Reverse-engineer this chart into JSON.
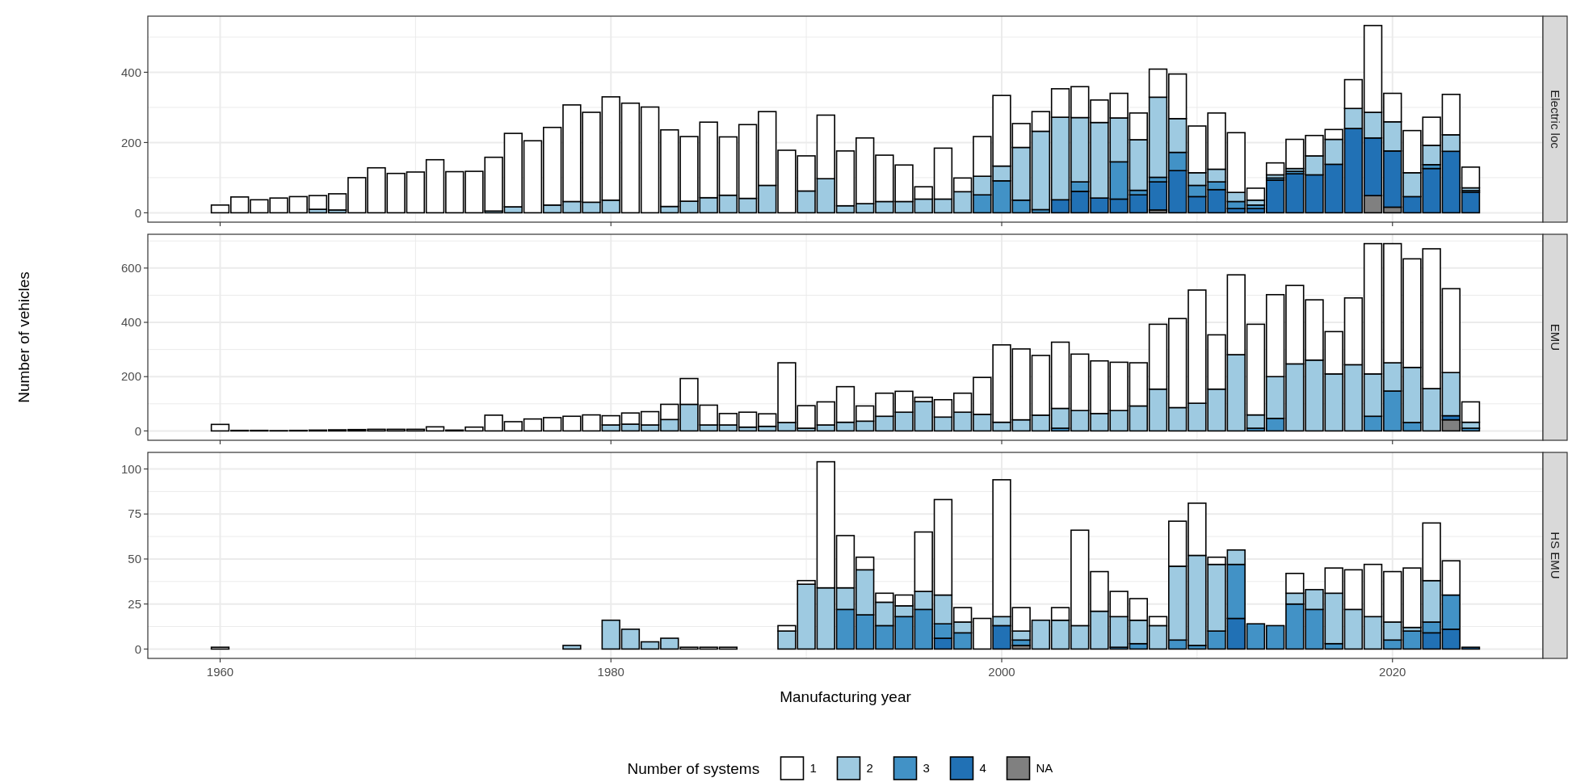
{
  "chart_data": [
    {
      "type": "bar",
      "title": "Electric loc",
      "stacked": true,
      "grid": true,
      "tick_labels": "y",
      "legend": "bottom",
      "legend_title": "Number of systems",
      "xlim": [
        1956.3,
        2027.7
      ],
      "xticks": [
        1960,
        1980,
        2000,
        2020
      ],
      "ylim": [
        -26.7,
        559.7
      ],
      "yticks": [
        0,
        200,
        400
      ],
      "x": [
        1960,
        1961,
        1962,
        1963,
        1964,
        1965,
        1966,
        1967,
        1968,
        1969,
        1970,
        1971,
        1972,
        1973,
        1974,
        1975,
        1976,
        1977,
        1978,
        1979,
        1980,
        1981,
        1982,
        1983,
        1984,
        1985,
        1986,
        1987,
        1988,
        1989,
        1990,
        1991,
        1992,
        1993,
        1994,
        1995,
        1996,
        1997,
        1998,
        1999,
        2000,
        2001,
        2002,
        2003,
        2004,
        2005,
        2006,
        2007,
        2008,
        2009,
        2010,
        2011,
        2012,
        2013,
        2014,
        2015,
        2016,
        2017,
        2018,
        2019,
        2020,
        2021,
        2022,
        2023,
        2024
      ],
      "series": [
        {
          "name": "NA",
          "color": "#808080",
          "values": [
            null,
            null,
            null,
            null,
            null,
            null,
            null,
            null,
            null,
            null,
            null,
            null,
            null,
            null,
            null,
            null,
            null,
            null,
            null,
            null,
            null,
            null,
            null,
            null,
            null,
            null,
            null,
            null,
            null,
            null,
            null,
            null,
            null,
            null,
            null,
            null,
            null,
            null,
            null,
            null,
            null,
            null,
            null,
            null,
            null,
            null,
            null,
            null,
            8,
            null,
            null,
            null,
            null,
            null,
            null,
            null,
            null,
            null,
            null,
            49,
            16,
            null,
            null,
            null,
            null
          ]
        },
        {
          "name": "4",
          "color": "#2171b5",
          "values": [
            null,
            null,
            null,
            null,
            null,
            null,
            null,
            null,
            null,
            null,
            null,
            null,
            null,
            null,
            null,
            null,
            null,
            null,
            null,
            null,
            null,
            null,
            null,
            null,
            null,
            null,
            null,
            null,
            null,
            null,
            null,
            null,
            null,
            null,
            null,
            null,
            null,
            null,
            null,
            null,
            null,
            null,
            null,
            37,
            61,
            42,
            39,
            51,
            80,
            120,
            46,
            66,
            12,
            12,
            93,
            111,
            108,
            138,
            240,
            164,
            160,
            46,
            126,
            175,
            58
          ]
        },
        {
          "name": "3",
          "color": "#4292c6",
          "values": [
            null,
            null,
            null,
            null,
            null,
            null,
            null,
            null,
            null,
            null,
            null,
            null,
            null,
            null,
            null,
            null,
            null,
            null,
            null,
            null,
            null,
            null,
            null,
            null,
            null,
            null,
            null,
            null,
            null,
            null,
            null,
            null,
            null,
            null,
            null,
            null,
            null,
            null,
            null,
            51,
            91,
            36,
            9,
            null,
            27,
            null,
            106,
            13,
            13,
            52,
            32,
            22,
            20,
            10,
            6,
            7,
            null,
            null,
            null,
            null,
            null,
            null,
            11,
            null,
            5
          ]
        },
        {
          "name": "2",
          "color": "#9ecae1",
          "values": [
            null,
            null,
            null,
            null,
            null,
            10,
            8,
            null,
            null,
            null,
            null,
            null,
            null,
            null,
            5,
            17,
            null,
            22,
            32,
            30,
            36,
            null,
            null,
            18,
            33,
            43,
            50,
            41,
            78,
            null,
            62,
            97,
            20,
            26,
            32,
            32,
            39,
            39,
            60,
            53,
            42,
            150,
            223,
            235,
            183,
            215,
            125,
            144,
            228,
            96,
            36,
            36,
            26,
            14,
            9,
            8,
            54,
            71,
            57,
            73,
            83,
            68,
            55,
            47,
            8
          ]
        },
        {
          "name": "1",
          "color": "#ffffff",
          "values": [
            22,
            45,
            37,
            42,
            46,
            39,
            46,
            100,
            128,
            112,
            116,
            151,
            117,
            118,
            153,
            209,
            205,
            221,
            275,
            256,
            294,
            312,
            301,
            218,
            184,
            215,
            166,
            210,
            210,
            178,
            100,
            181,
            156,
            187,
            132,
            104,
            35,
            145,
            39,
            113,
            201,
            68,
            56,
            81,
            88,
            64,
            70,
            76,
            80,
            127,
            133,
            160,
            170,
            34,
            34,
            83,
            58,
            28,
            82,
            247,
            81,
            120,
            80,
            115,
            59
          ]
        }
      ]
    },
    {
      "type": "bar",
      "title": "EMU",
      "ylabel": "Number of vehicles",
      "stacked": true,
      "grid": true,
      "tick_labels": "y",
      "xlim": [
        1956.3,
        2027.7
      ],
      "xticks": [
        1960,
        1980,
        2000,
        2020
      ],
      "ylim": [
        -34.5,
        724.5
      ],
      "yticks": [
        0,
        200,
        400,
        600
      ],
      "x": [
        1960,
        1961,
        1962,
        1963,
        1964,
        1965,
        1966,
        1967,
        1968,
        1969,
        1970,
        1971,
        1972,
        1973,
        1974,
        1975,
        1976,
        1977,
        1978,
        1979,
        1980,
        1981,
        1982,
        1983,
        1984,
        1985,
        1986,
        1987,
        1988,
        1989,
        1990,
        1991,
        1992,
        1993,
        1994,
        1995,
        1996,
        1997,
        1998,
        1999,
        2000,
        2001,
        2002,
        2003,
        2004,
        2005,
        2006,
        2007,
        2008,
        2009,
        2010,
        2011,
        2012,
        2013,
        2014,
        2015,
        2016,
        2017,
        2018,
        2019,
        2020,
        2021,
        2022,
        2023,
        2024
      ],
      "series": [
        {
          "color": "#808080",
          "values": [
            null,
            null,
            null,
            null,
            null,
            null,
            null,
            null,
            null,
            null,
            null,
            null,
            null,
            null,
            null,
            null,
            null,
            null,
            null,
            null,
            null,
            null,
            null,
            null,
            null,
            null,
            null,
            null,
            null,
            null,
            null,
            null,
            null,
            null,
            null,
            null,
            null,
            null,
            null,
            null,
            null,
            null,
            null,
            null,
            null,
            null,
            null,
            null,
            null,
            null,
            null,
            null,
            null,
            null,
            null,
            null,
            null,
            null,
            null,
            null,
            null,
            null,
            null,
            41,
            null
          ]
        },
        {
          "color": "#2171b5",
          "values": [
            null,
            null,
            null,
            null,
            null,
            null,
            null,
            null,
            null,
            null,
            null,
            null,
            null,
            null,
            null,
            null,
            null,
            null,
            null,
            null,
            null,
            null,
            null,
            null,
            null,
            null,
            null,
            null,
            null,
            null,
            null,
            null,
            null,
            null,
            null,
            null,
            null,
            null,
            null,
            null,
            null,
            null,
            null,
            null,
            null,
            null,
            null,
            null,
            null,
            null,
            null,
            null,
            null,
            null,
            null,
            null,
            null,
            null,
            null,
            null,
            null,
            null,
            null,
            15,
            null
          ]
        },
        {
          "color": "#4292c6",
          "values": [
            null,
            null,
            null,
            null,
            null,
            null,
            null,
            null,
            null,
            null,
            null,
            null,
            null,
            null,
            null,
            null,
            null,
            null,
            null,
            null,
            null,
            null,
            null,
            null,
            null,
            null,
            null,
            null,
            null,
            null,
            null,
            null,
            null,
            null,
            null,
            null,
            null,
            null,
            null,
            null,
            null,
            null,
            null,
            10,
            null,
            null,
            null,
            null,
            null,
            null,
            null,
            null,
            null,
            10,
            46,
            null,
            null,
            null,
            null,
            54,
            147,
            31,
            null,
            null,
            10
          ]
        },
        {
          "color": "#9ecae1",
          "values": [
            null,
            null,
            null,
            null,
            null,
            null,
            null,
            null,
            null,
            null,
            null,
            null,
            null,
            null,
            null,
            null,
            null,
            null,
            null,
            null,
            22,
            25,
            22,
            42,
            98,
            22,
            22,
            14,
            17,
            31,
            10,
            22,
            32,
            36,
            54,
            69,
            108,
            51,
            69,
            61,
            32,
            41,
            58,
            73,
            75,
            64,
            75,
            92,
            154,
            86,
            102,
            154,
            281,
            49,
            154,
            247,
            261,
            210,
            244,
            156,
            104,
            203,
            156,
            159,
            22
          ]
        },
        {
          "color": "#ffffff",
          "values": [
            24,
            2,
            2,
            1,
            2,
            3,
            4,
            5,
            6,
            6,
            6,
            15,
            3,
            14,
            58,
            34,
            44,
            49,
            54,
            59,
            34,
            41,
            49,
            56,
            95,
            73,
            42,
            55,
            46,
            220,
            83,
            85,
            131,
            56,
            85,
            77,
            16,
            64,
            70,
            136,
            285,
            261,
            220,
            244,
            208,
            194,
            178,
            159,
            239,
            328,
            417,
            200,
            294,
            334,
            302,
            289,
            222,
            156,
            246,
            480,
            439,
            400,
            515,
            309,
            75
          ]
        }
      ]
    },
    {
      "type": "bar",
      "title": "HS EMU",
      "xlabel": "Manufacturing year",
      "stacked": true,
      "grid": true,
      "xlim": [
        1956.3,
        2027.7
      ],
      "xticks": [
        1960,
        1980,
        2000,
        2020
      ],
      "ylim": [
        -5.2,
        109.2
      ],
      "yticks": [
        0,
        25,
        50,
        75,
        100
      ],
      "x": [
        1960,
        1961,
        1962,
        1963,
        1964,
        1965,
        1966,
        1967,
        1968,
        1969,
        1970,
        1971,
        1972,
        1973,
        1974,
        1975,
        1976,
        1977,
        1978,
        1979,
        1980,
        1981,
        1982,
        1983,
        1984,
        1985,
        1986,
        1987,
        1988,
        1989,
        1990,
        1991,
        1992,
        1993,
        1994,
        1995,
        1996,
        1997,
        1998,
        1999,
        2000,
        2001,
        2002,
        2003,
        2004,
        2005,
        2006,
        2007,
        2008,
        2009,
        2010,
        2011,
        2012,
        2013,
        2014,
        2015,
        2016,
        2017,
        2018,
        2019,
        2020,
        2021,
        2022,
        2023,
        2024
      ],
      "series": [
        {
          "color": "#808080",
          "values": [
            null,
            null,
            null,
            null,
            null,
            null,
            null,
            null,
            null,
            null,
            null,
            null,
            null,
            null,
            null,
            null,
            null,
            null,
            null,
            null,
            null,
            null,
            null,
            null,
            null,
            null,
            null,
            null,
            null,
            null,
            null,
            null,
            null,
            null,
            null,
            null,
            null,
            null,
            null,
            null,
            null,
            2,
            null,
            null,
            null,
            null,
            null,
            null,
            null,
            null,
            null,
            null,
            null,
            null,
            null,
            null,
            null,
            null,
            null,
            null,
            null,
            null,
            null,
            null,
            null
          ]
        },
        {
          "color": "#2171b5",
          "values": [
            null,
            null,
            null,
            null,
            null,
            null,
            null,
            null,
            null,
            null,
            null,
            null,
            null,
            null,
            null,
            null,
            null,
            null,
            null,
            null,
            null,
            null,
            null,
            null,
            null,
            null,
            null,
            null,
            null,
            null,
            null,
            null,
            null,
            null,
            null,
            null,
            null,
            6,
            null,
            null,
            13,
            null,
            null,
            null,
            null,
            null,
            null,
            null,
            null,
            null,
            null,
            null,
            17,
            null,
            null,
            null,
            null,
            null,
            null,
            null,
            null,
            null,
            9,
            11,
            1
          ]
        },
        {
          "color": "#4292c6",
          "values": [
            null,
            null,
            null,
            null,
            null,
            null,
            null,
            null,
            null,
            null,
            null,
            null,
            null,
            null,
            null,
            null,
            null,
            null,
            null,
            null,
            null,
            null,
            null,
            null,
            null,
            null,
            null,
            null,
            null,
            null,
            null,
            null,
            22,
            19,
            13,
            18,
            22,
            8,
            9,
            null,
            null,
            3,
            null,
            null,
            null,
            null,
            1,
            3,
            null,
            5,
            2,
            10,
            30,
            14,
            13,
            25,
            22,
            3,
            null,
            null,
            5,
            10,
            6,
            19,
            null
          ]
        },
        {
          "color": "#9ecae1",
          "values": [
            null,
            null,
            null,
            null,
            null,
            null,
            null,
            null,
            null,
            null,
            null,
            null,
            null,
            null,
            null,
            null,
            null,
            null,
            2,
            null,
            16,
            11,
            4,
            6,
            null,
            null,
            null,
            null,
            null,
            10,
            36,
            34,
            12,
            25,
            13,
            6,
            10,
            16,
            6,
            null,
            5,
            5,
            16,
            16,
            13,
            21,
            17,
            13,
            13,
            41,
            50,
            37,
            8,
            null,
            null,
            6,
            11,
            28,
            22,
            18,
            10,
            2,
            23,
            null,
            null
          ]
        },
        {
          "color": "#ffffff",
          "values": [
            1,
            null,
            null,
            null,
            null,
            null,
            null,
            null,
            null,
            null,
            null,
            null,
            null,
            null,
            null,
            null,
            null,
            null,
            null,
            null,
            null,
            null,
            null,
            null,
            1,
            1,
            1,
            null,
            null,
            3,
            2,
            70,
            29,
            7,
            5,
            6,
            33,
            53,
            8,
            17,
            76,
            13,
            null,
            7,
            53,
            22,
            14,
            12,
            5,
            25,
            29,
            4,
            null,
            null,
            null,
            11,
            null,
            14,
            22,
            29,
            28,
            33,
            32,
            19,
            null
          ]
        }
      ]
    }
  ]
}
